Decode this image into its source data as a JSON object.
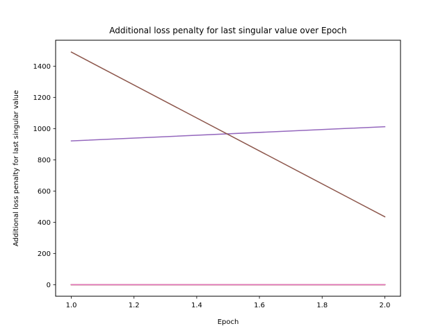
{
  "chart_data": {
    "type": "line",
    "title": "Additional loss penalty for last singular value over Epoch",
    "xlabel": "Epoch",
    "ylabel": "Additional loss penalty for last singular value",
    "xlim": [
      0.95,
      2.05
    ],
    "ylim": [
      -74,
      1566
    ],
    "x_ticks": [
      1.0,
      1.2,
      1.4,
      1.6,
      1.8,
      2.0
    ],
    "x_tick_labels": [
      "1.0",
      "1.2",
      "1.4",
      "1.6",
      "1.8",
      "2.0"
    ],
    "y_ticks": [
      0,
      200,
      400,
      600,
      800,
      1000,
      1200,
      1400
    ],
    "y_tick_labels": [
      "0",
      "200",
      "400",
      "600",
      "800",
      "1000",
      "1200",
      "1400"
    ],
    "grid": false,
    "legend": "none",
    "x": [
      1.0,
      2.0
    ],
    "series": [
      {
        "color": "#1f77b4",
        "values": [
          0,
          0
        ]
      },
      {
        "color": "#ff7f0e",
        "values": [
          0,
          0
        ]
      },
      {
        "color": "#2ca02c",
        "values": [
          0,
          0
        ]
      },
      {
        "color": "#d62728",
        "values": [
          0,
          0
        ]
      },
      {
        "color": "#9467bd",
        "values": [
          921,
          1012
        ]
      },
      {
        "color": "#8c564b",
        "values": [
          1490,
          435
        ]
      },
      {
        "color": "#e377c2",
        "values": [
          0,
          0
        ]
      }
    ]
  }
}
